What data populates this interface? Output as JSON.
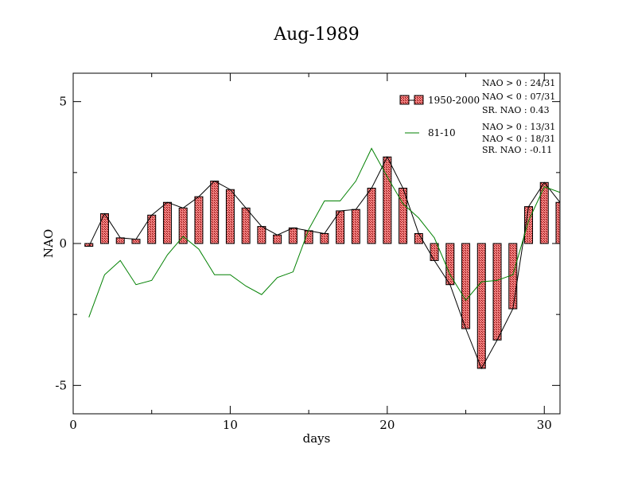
{
  "chart_data": {
    "type": "bar",
    "title": "Aug-1989",
    "xlabel": "days",
    "ylabel": "NAO",
    "xlim": [
      0,
      31
    ],
    "ylim": [
      -6,
      6
    ],
    "x_ticks": [
      0,
      10,
      20,
      30
    ],
    "x_tick_labels": [
      "0",
      "10",
      "20",
      "30"
    ],
    "y_ticks": [
      -5,
      0,
      5
    ],
    "y_tick_labels": [
      "-5",
      "0",
      "5"
    ],
    "grid": false,
    "legend_position": "top-right",
    "colors": {
      "bar_fill": "#f08080",
      "bar_pattern": "#8b0000",
      "bar_outline": "#000000",
      "line_1950_2000": "#000000",
      "line_81_10": "#008000"
    },
    "x": [
      1,
      2,
      3,
      4,
      5,
      6,
      7,
      8,
      9,
      10,
      11,
      12,
      13,
      14,
      15,
      16,
      17,
      18,
      19,
      20,
      21,
      22,
      23,
      24,
      25,
      26,
      27,
      28,
      29,
      30,
      31
    ],
    "series": [
      {
        "name": "1950-2000",
        "kind": "bar+line",
        "values": [
          -0.1,
          1.05,
          0.2,
          0.15,
          1.0,
          1.45,
          1.25,
          1.65,
          2.2,
          1.9,
          1.25,
          0.6,
          0.3,
          0.55,
          0.45,
          0.35,
          1.15,
          1.2,
          1.95,
          3.05,
          1.95,
          0.35,
          -0.6,
          -1.45,
          -3.0,
          -4.4,
          -3.4,
          -2.3,
          1.3,
          2.15,
          1.45
        ]
      },
      {
        "name": "81-10",
        "kind": "line",
        "values": [
          -2.6,
          -1.1,
          -0.6,
          -1.45,
          -1.3,
          -0.4,
          0.25,
          -0.2,
          -1.1,
          -1.1,
          -1.5,
          -1.8,
          -1.2,
          -1.0,
          0.5,
          1.5,
          1.5,
          2.2,
          3.35,
          2.35,
          1.4,
          0.9,
          0.2,
          -1.1,
          -2.0,
          -1.35,
          -1.3,
          -1.1,
          0.8,
          2.0,
          1.8
        ]
      }
    ],
    "annotations": {
      "group_1950_2000": [
        "NAO > 0 : 24/31",
        "NAO < 0 : 07/31",
        "SR. NAO :  0.43"
      ],
      "group_81_10": [
        "NAO > 0 : 13/31",
        "NAO < 0 : 18/31",
        "SR. NAO : -0.11"
      ]
    }
  }
}
